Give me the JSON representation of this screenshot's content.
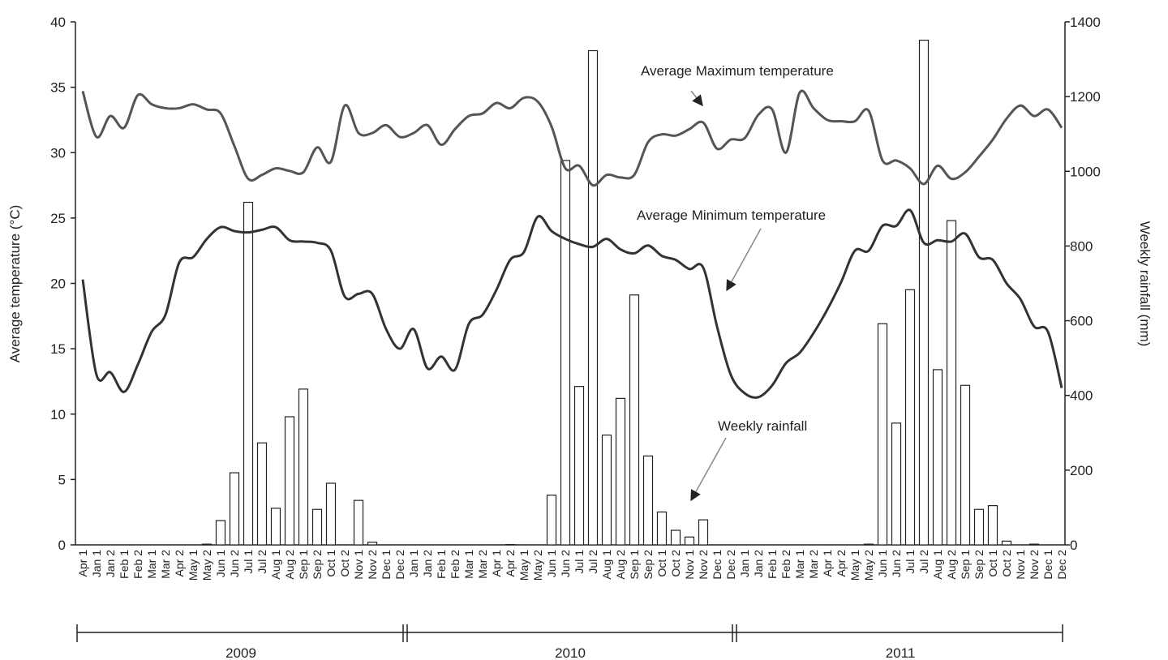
{
  "chart_data": {
    "type": "bar_line",
    "categories": [
      "Apr 1",
      "Jan 1",
      "Jan 2",
      "Feb 1",
      "Feb 2",
      "Mar 1",
      "Mar 2",
      "Apr 2",
      "May 1",
      "May 2",
      "Jun 1",
      "Jun 2",
      "Jul 1",
      "Jul 2",
      "Aug 1",
      "Aug 2",
      "Sep 1",
      "Sep 2",
      "Oct 1",
      "Oct 2",
      "Nov 1",
      "Nov 2",
      "Dec 1",
      "Dec 2",
      "Jan 1",
      "Jan 2",
      "Feb 1",
      "Feb 2",
      "Mar 1",
      "Mar 2",
      "Apr 1",
      "Apr 2",
      "May 1",
      "May 2",
      "Jun 1",
      "Jun 2",
      "Jul 1",
      "Jul 2",
      "Aug 1",
      "Aug 2",
      "Sep 1",
      "Sep 2",
      "Oct 1",
      "Oct 2",
      "Nov 1",
      "Nov 2",
      "Dec 1",
      "Dec 2",
      "Jan 1",
      "Jan 2",
      "Feb 1",
      "Feb 2",
      "Mar 1",
      "Mar 2",
      "Apr 1",
      "Apr 2",
      "May 1",
      "May 2",
      "Jun 1",
      "Jun 2",
      "Jul 1",
      "Jul 2",
      "Aug 1",
      "Aug 2",
      "Sep 1",
      "Sep 2",
      "Oct 1",
      "Oct 2",
      "Nov 1",
      "Nov 2",
      "Dec 1",
      "Dec 2"
    ],
    "year_labels": [
      "2009",
      "2010",
      "2011"
    ],
    "ylabel": "Average temperature (°C)",
    "y2label": "Weekly rainfall (mm)",
    "ylim": [
      0,
      40
    ],
    "yticks": [
      0,
      5,
      10,
      15,
      20,
      25,
      30,
      35,
      40
    ],
    "y2lim": [
      0,
      1400
    ],
    "y2ticks": [
      0,
      200,
      400,
      600,
      800,
      1000,
      1200,
      1400
    ],
    "annotations": [
      "Average Maximum temperature",
      "Average Minimum temperature",
      "Weekly rainfall"
    ],
    "series": [
      {
        "name": "Weekly rainfall",
        "type": "bar",
        "axis": "y2",
        "color": "#ffffff",
        "values": [
          0,
          0,
          0,
          0,
          0,
          0,
          0,
          0,
          0,
          2,
          65,
          193,
          917,
          273,
          98,
          343,
          417,
          95,
          165,
          0,
          119,
          7,
          0,
          0,
          0,
          0,
          0,
          0,
          0,
          0,
          0,
          1,
          0,
          0,
          133,
          1029,
          424,
          1323,
          294,
          392,
          669,
          238,
          88,
          39,
          21,
          67,
          0,
          0,
          0,
          0,
          0,
          0,
          0,
          0,
          0,
          0,
          0,
          2,
          592,
          326,
          683,
          1351,
          469,
          868,
          427,
          95,
          105,
          10,
          0,
          2,
          0,
          0
        ]
      },
      {
        "name": "Average Maximum temperature",
        "type": "line",
        "axis": "y",
        "color": "#555555",
        "values": [
          34.7,
          31.2,
          32.8,
          31.9,
          34.4,
          33.7,
          33.4,
          33.4,
          33.7,
          33.3,
          33.0,
          30.5,
          28.0,
          28.3,
          28.8,
          28.6,
          28.5,
          30.4,
          29.3,
          33.6,
          31.5,
          31.5,
          32.1,
          31.2,
          31.5,
          32.1,
          30.6,
          31.8,
          32.8,
          33.0,
          33.8,
          33.4,
          34.2,
          33.9,
          32.0,
          28.8,
          29.0,
          27.5,
          28.3,
          28.1,
          28.3,
          30.8,
          31.4,
          31.3,
          31.8,
          32.3,
          30.3,
          31.0,
          31.1,
          32.9,
          33.3,
          30.0,
          34.6,
          33.4,
          32.5,
          32.4,
          32.4,
          33.2,
          29.4,
          29.4,
          28.8,
          27.6,
          29.0,
          28.0,
          28.5,
          29.7,
          31.0,
          32.6,
          33.6,
          32.8,
          33.3,
          31.9
        ]
      },
      {
        "name": "Average Minimum temperature",
        "type": "line",
        "axis": "y",
        "color": "#333333",
        "values": [
          20.3,
          13.0,
          13.2,
          11.7,
          13.8,
          16.3,
          17.6,
          21.6,
          22.0,
          23.4,
          24.3,
          24.0,
          23.9,
          24.1,
          24.3,
          23.3,
          23.2,
          23.1,
          22.5,
          19.0,
          19.2,
          19.2,
          16.5,
          15.0,
          16.5,
          13.5,
          14.4,
          13.4,
          16.9,
          17.6,
          19.5,
          21.8,
          22.4,
          25.1,
          24.0,
          23.4,
          23.0,
          22.8,
          23.4,
          22.6,
          22.3,
          22.9,
          22.1,
          21.8,
          21.1,
          21.2,
          16.7,
          13.0,
          11.6,
          11.3,
          12.2,
          13.9,
          14.7,
          16.2,
          18.0,
          20.1,
          22.5,
          22.5,
          24.4,
          24.4,
          25.6,
          23.1,
          23.3,
          23.2,
          23.8,
          22.0,
          21.8,
          20.0,
          18.8,
          16.7,
          16.3,
          12.0
        ]
      }
    ]
  }
}
